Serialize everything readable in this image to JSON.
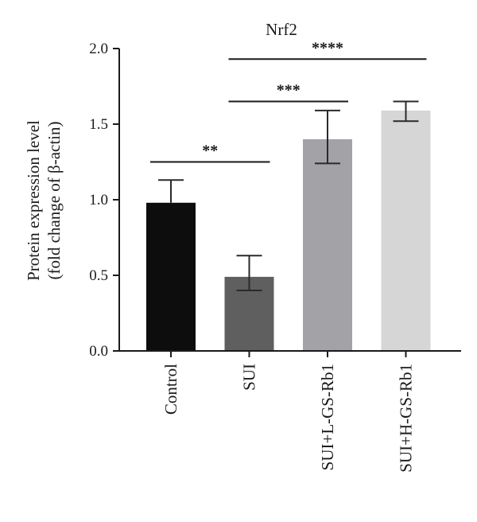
{
  "chart_data": {
    "type": "bar",
    "title": "Nrf2",
    "ylabel_lines": [
      "Protein expression level",
      "(fold change of β-actin)"
    ],
    "xlabel": "",
    "categories": [
      "Control",
      "SUI",
      "SUI+L-GS-Rb1",
      "SUI+H-GS-Rb1"
    ],
    "values": [
      0.98,
      0.49,
      1.4,
      1.59
    ],
    "error_upper": [
      1.13,
      0.63,
      1.59,
      1.65
    ],
    "error_lower": [
      null,
      0.4,
      1.24,
      1.52
    ],
    "colors": [
      "#0d0d0d",
      "#5f5f5f",
      "#a3a3a7",
      "#d6d6d6"
    ],
    "ylim": [
      0,
      2.0
    ],
    "yticks": [
      "0.0",
      "0.5",
      "1.0",
      "1.5",
      "2.0"
    ],
    "grid": false,
    "significance": [
      {
        "from": "Control",
        "to": "SUI",
        "label": "**",
        "y": 1.25
      },
      {
        "from": "SUI",
        "to": "SUI+L-GS-Rb1",
        "label": "***",
        "y": 1.65
      },
      {
        "from": "SUI",
        "to": "SUI+H-GS-Rb1",
        "label": "****",
        "y": 1.93
      }
    ]
  }
}
